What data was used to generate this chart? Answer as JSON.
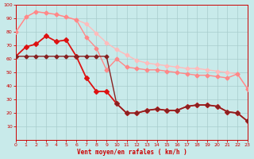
{
  "bg_color": "#c8eaea",
  "grid_color": "#a8cccc",
  "xlabel": "Vent moyen/en rafales ( km/h )",
  "xlabel_color": "#cc0000",
  "tick_color": "#cc0000",
  "ylim": [
    0,
    100
  ],
  "xlim": [
    0,
    23
  ],
  "yticks": [
    10,
    20,
    30,
    40,
    50,
    60,
    70,
    80,
    90,
    100
  ],
  "xticks": [
    0,
    1,
    2,
    3,
    4,
    5,
    6,
    7,
    8,
    9,
    10,
    11,
    12,
    13,
    14,
    15,
    16,
    17,
    18,
    19,
    20,
    21,
    22,
    23
  ],
  "series": [
    {
      "x": [
        0,
        1,
        2,
        3,
        4,
        5,
        6,
        7,
        8,
        9,
        10,
        11,
        12,
        13,
        14,
        15,
        16,
        17,
        18,
        19,
        20,
        21,
        22,
        23
      ],
      "y": [
        80,
        91,
        95,
        94,
        93,
        91,
        89,
        86,
        79,
        72,
        67,
        63,
        59,
        57,
        56,
        55,
        54,
        53,
        53,
        52,
        51,
        50,
        49,
        38
      ],
      "color": "#ffbbbb",
      "lw": 1.0,
      "ms": 2.5
    },
    {
      "x": [
        0,
        1,
        2,
        3,
        4,
        5,
        6,
        7,
        8,
        9,
        10,
        11,
        12,
        13,
        14,
        15,
        16,
        17,
        18,
        19,
        20,
        21,
        22,
        23
      ],
      "y": [
        80,
        91,
        95,
        94,
        93,
        91,
        89,
        76,
        68,
        52,
        60,
        54,
        53,
        52,
        52,
        51,
        50,
        49,
        48,
        48,
        47,
        46,
        49,
        38
      ],
      "color": "#ff8888",
      "lw": 1.0,
      "ms": 2.5
    },
    {
      "x": [
        0,
        1,
        2,
        3,
        4,
        5,
        6,
        7,
        8,
        9,
        10,
        11,
        12,
        13,
        14,
        15,
        16,
        17,
        18,
        19,
        20,
        21,
        22,
        23
      ],
      "y": [
        62,
        69,
        71,
        77,
        73,
        74,
        62,
        46,
        36,
        36,
        27,
        20,
        20,
        22,
        23,
        22,
        22,
        25,
        26,
        26,
        25,
        21,
        20,
        14
      ],
      "color": "#dd1111",
      "lw": 1.3,
      "ms": 3.0
    },
    {
      "x": [
        0,
        1,
        2,
        3,
        4,
        5,
        6,
        7,
        8,
        9,
        10,
        11,
        12,
        13,
        14,
        15,
        16,
        17,
        18,
        19,
        20,
        21,
        22,
        23
      ],
      "y": [
        62,
        62,
        62,
        62,
        62,
        62,
        62,
        62,
        62,
        62,
        27,
        20,
        20,
        22,
        23,
        22,
        22,
        25,
        26,
        26,
        25,
        21,
        20,
        14
      ],
      "color": "#882222",
      "lw": 1.0,
      "ms": 2.5
    }
  ]
}
